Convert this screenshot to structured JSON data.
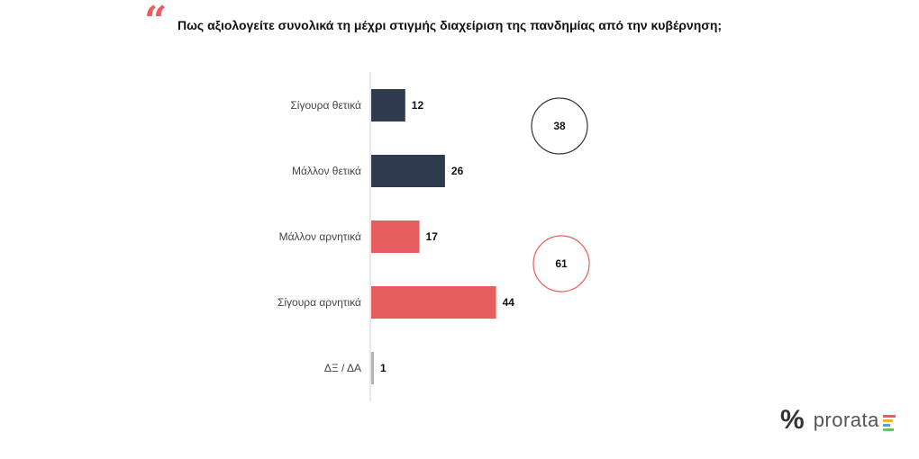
{
  "header": {
    "quote_symbol": "“",
    "title": "Πως αξιολογείτε συνολικά τη μέχρι στιγμής διαχείριση της πανδημίας από την κυβέρνηση;"
  },
  "chart_data": {
    "type": "bar",
    "orientation": "horizontal",
    "categories": [
      "Σίγουρα θετικά",
      "Μάλλον θετικά",
      "Μάλλον αρνητικά",
      "Σίγουρα αρνητικά",
      "ΔΞ / ΔΑ"
    ],
    "values": [
      12,
      26,
      17,
      44,
      1
    ],
    "bar_colors": [
      "#2e3a4e",
      "#2e3a4e",
      "#e85d5d",
      "#e85d5d",
      "#b3b3b3"
    ],
    "xlim": [
      0,
      50
    ],
    "grid": false,
    "totals": [
      {
        "value": 38,
        "group": "positive",
        "border_color": "#333333"
      },
      {
        "value": 61,
        "group": "negative",
        "border_color": "#e85d5d"
      }
    ]
  },
  "logo": {
    "symbol": "%",
    "text": "prorata",
    "bar_colors": [
      "#e85d5d",
      "#f2b233",
      "#4aa3df",
      "#6cc070"
    ]
  }
}
